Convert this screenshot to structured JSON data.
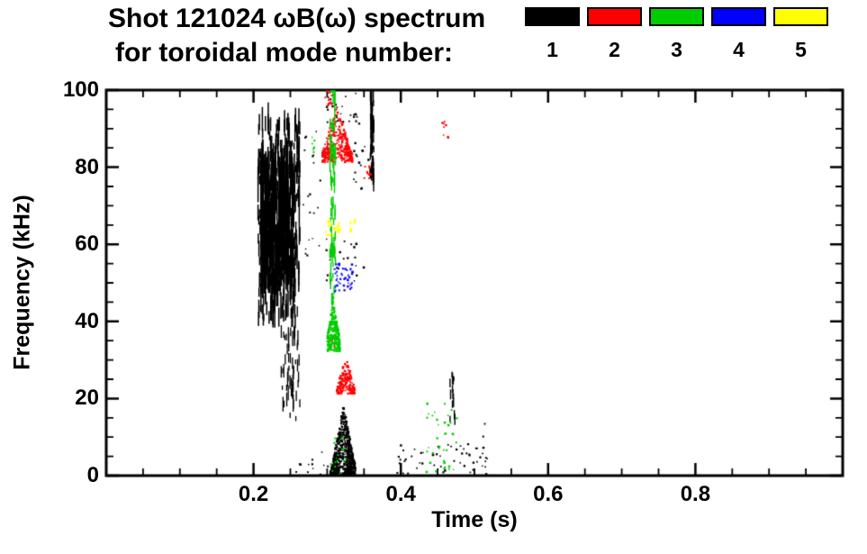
{
  "chart_data": {
    "type": "scatter",
    "title": "Shot 121024 ωB(ω) spectrum",
    "subtitle": "for toroidal mode number:",
    "xlabel": "Time (s)",
    "ylabel": "Frequency (kHz)",
    "xlim": [
      0.0,
      1.0
    ],
    "ylim": [
      0,
      100
    ],
    "x_major_ticks": [
      {
        "value": 0.2,
        "label": "0.2"
      },
      {
        "value": 0.4,
        "label": "0.4"
      },
      {
        "value": 0.6,
        "label": "0.6"
      },
      {
        "value": 0.8,
        "label": "0.8"
      }
    ],
    "x_minor_step": 0.05,
    "y_major_ticks": [
      {
        "value": 0,
        "label": "0"
      },
      {
        "value": 20,
        "label": "20"
      },
      {
        "value": 40,
        "label": "40"
      },
      {
        "value": 60,
        "label": "60"
      },
      {
        "value": 80,
        "label": "80"
      },
      {
        "value": 100,
        "label": "100"
      }
    ],
    "y_minor_step": 5,
    "axis_color": "#000000",
    "background": "#ffffff",
    "legend_position": "top-right",
    "grid": false,
    "series": [
      {
        "name": "mode-1",
        "legend_label": "1",
        "color": "#000000",
        "clusters": [
          {
            "t": [
              0.205,
              0.262
            ],
            "f": [
              38,
              90
            ],
            "n": 350,
            "style": "streaks",
            "size": 1.5,
            "len": [
              1.5,
              7
            ]
          },
          {
            "t": [
              0.209,
              0.253
            ],
            "f": [
              47,
              79
            ],
            "n": 450,
            "style": "streaks",
            "size": 1.5,
            "len": [
              2,
              9
            ]
          },
          {
            "t": [
              0.236,
              0.263
            ],
            "f": [
              14,
              42
            ],
            "n": 60,
            "style": "streaks",
            "size": 1.3,
            "len": [
              1,
              4
            ]
          },
          {
            "t": [
              0.303,
              0.337
            ],
            "f": [
              0,
              18
            ],
            "n": 650,
            "style": "dots",
            "size": 2,
            "envelope": {
              "center": 0.321,
              "width": 0.018
            }
          },
          {
            "t": [
              0.3575,
              0.3625
            ],
            "f": [
              73,
              100
            ],
            "n": 70,
            "style": "streaks",
            "size": 1.4,
            "len": [
              1,
              4
            ]
          },
          {
            "t": [
              0.295,
              0.345
            ],
            "f": [
              91,
              100
            ],
            "n": 25,
            "style": "dots",
            "size": 2
          },
          {
            "t": [
              0.293,
              0.352
            ],
            "f": [
              49,
              62
            ],
            "n": 18,
            "style": "dots",
            "size": 2
          },
          {
            "t": [
              0.385,
              0.52
            ],
            "f": [
              0,
              9
            ],
            "n": 45,
            "style": "dots",
            "size": 2
          },
          {
            "t": [
              0.466,
              0.473
            ],
            "f": [
              12,
              26
            ],
            "n": 14,
            "style": "streaks",
            "size": 1.4,
            "len": [
              1,
              3
            ]
          },
          {
            "t": [
              0.24,
              0.3
            ],
            "f": [
              0,
              7
            ],
            "n": 12,
            "style": "dots",
            "size": 2
          },
          {
            "t": [
              0.263,
              0.29
            ],
            "f": [
              55,
              90
            ],
            "n": 20,
            "style": "dots",
            "size": 1.8
          },
          {
            "t": [
              0.335,
              0.355
            ],
            "f": [
              74,
              86
            ],
            "n": 15,
            "style": "dots",
            "size": 2
          },
          {
            "t": [
              0.497,
              0.513
            ],
            "f": [
              0,
              14
            ],
            "n": 10,
            "style": "dots",
            "size": 2
          }
        ]
      },
      {
        "name": "mode-2",
        "legend_label": "2",
        "color": "#ff0000",
        "clusters": [
          {
            "t": [
              0.292,
              0.333
            ],
            "f": [
              81,
              96
            ],
            "n": 320,
            "style": "dots",
            "size": 2,
            "envelope": {
              "center": 0.312,
              "width": 0.024
            }
          },
          {
            "t": [
              0.312,
              0.336
            ],
            "f": [
              21,
              31
            ],
            "n": 170,
            "style": "dots",
            "size": 2,
            "envelope": {
              "center": 0.324,
              "width": 0.014
            }
          },
          {
            "t": [
              0.296,
              0.306
            ],
            "f": [
              95,
              100
            ],
            "n": 15,
            "style": "dots",
            "size": 2
          },
          {
            "t": [
              0.349,
              0.36
            ],
            "f": [
              76,
              80
            ],
            "n": 10,
            "style": "dots",
            "size": 2
          },
          {
            "t": [
              0.455,
              0.465
            ],
            "f": [
              87,
              94
            ],
            "n": 8,
            "style": "dots",
            "size": 2
          },
          {
            "t": [
              0.302,
              0.31
            ],
            "f": [
              33,
              37
            ],
            "n": 8,
            "style": "dots",
            "size": 2
          }
        ]
      },
      {
        "name": "mode-3",
        "legend_label": "3",
        "color": "#00cc00",
        "clusters": [
          {
            "t": [
              0.3025,
              0.3105
            ],
            "f": [
              44,
              100
            ],
            "n": 90,
            "style": "streaks",
            "size": 1.4,
            "len": [
              1,
              4
            ]
          },
          {
            "t": [
              0.299,
              0.316
            ],
            "f": [
              32,
              46
            ],
            "n": 260,
            "style": "dots",
            "size": 2,
            "envelope": {
              "center": 0.307,
              "width": 0.011
            }
          },
          {
            "t": [
              0.433,
              0.476
            ],
            "f": [
              0,
              19
            ],
            "n": 35,
            "style": "dots",
            "size": 2
          },
          {
            "t": [
              0.276,
              0.285
            ],
            "f": [
              83,
              88
            ],
            "n": 6,
            "style": "dots",
            "size": 2
          },
          {
            "t": [
              0.3,
              0.325
            ],
            "f": [
              0,
              10
            ],
            "n": 15,
            "style": "dots",
            "size": 2
          }
        ]
      },
      {
        "name": "mode-4",
        "legend_label": "4",
        "color": "#0000ff",
        "clusters": [
          {
            "t": [
              0.308,
              0.333
            ],
            "f": [
              47,
              56
            ],
            "n": 45,
            "style": "dots",
            "size": 2
          }
        ]
      },
      {
        "name": "mode-5",
        "legend_label": "5",
        "color": "#ffff00",
        "clusters": [
          {
            "t": [
              0.297,
              0.316
            ],
            "f": [
              62,
              66
            ],
            "n": 30,
            "style": "dots",
            "size": 2
          },
          {
            "t": [
              0.329,
              0.337
            ],
            "f": [
              63,
              66
            ],
            "n": 8,
            "style": "dots",
            "size": 2
          }
        ]
      }
    ]
  }
}
